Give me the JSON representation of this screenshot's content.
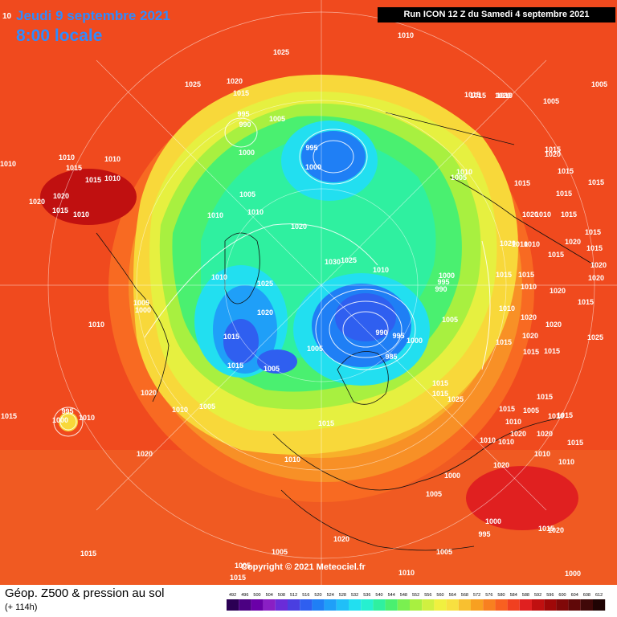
{
  "header": {
    "date": "Jeudi 9 septembre 2021",
    "local_time": "8:00 locale",
    "corner_fragment": "10",
    "run": "Run ICON 12 Z du Samedi 4 septembre 2021"
  },
  "copyright": "Copyright © 2021 Meteociel.fr",
  "footer": {
    "title": "Géop. Z500 & pression au sol",
    "lead_time": "(+ 114h)"
  },
  "scale": {
    "labels": [
      "492",
      "496",
      "500",
      "504",
      "508",
      "512",
      "516",
      "520",
      "524",
      "528",
      "532",
      "536",
      "540",
      "544",
      "548",
      "552",
      "556",
      "560",
      "564",
      "568",
      "572",
      "576",
      "580",
      "584",
      "588",
      "592",
      "596",
      "600",
      "604",
      "608",
      "612"
    ],
    "colors": [
      "#2b0054",
      "#4b0082",
      "#6a00a8",
      "#8a1fc4",
      "#6a2cd8",
      "#4a3fe0",
      "#2f5ff0",
      "#1f7ff5",
      "#1f9ff8",
      "#20bff8",
      "#22dff0",
      "#26f0d0",
      "#2ff0a0",
      "#4af070",
      "#7af050",
      "#a8f040",
      "#d0f040",
      "#f0f040",
      "#f8e040",
      "#f8c030",
      "#f8a020",
      "#f88020",
      "#f86020",
      "#f04020",
      "#e02020",
      "#c01010",
      "#a00808",
      "#800808",
      "#600808",
      "#400808",
      "#200404"
    ]
  },
  "isobars": [
    {
      "v": "1025",
      "c": "w"
    },
    {
      "v": "1010",
      "c": "w"
    },
    {
      "v": "1025",
      "c": "w"
    },
    {
      "v": "1020",
      "c": "w"
    },
    {
      "v": "1015",
      "c": "w"
    },
    {
      "v": "995",
      "c": "w"
    },
    {
      "v": "990",
      "c": "w"
    },
    {
      "v": "1005",
      "c": "w"
    },
    {
      "v": "995",
      "c": "w"
    },
    {
      "v": "1000",
      "c": "w"
    },
    {
      "v": "1000",
      "c": "w"
    },
    {
      "v": "1005",
      "c": "w"
    },
    {
      "v": "1010",
      "c": "w"
    },
    {
      "v": "1010",
      "c": "w"
    },
    {
      "v": "1020",
      "c": "w"
    },
    {
      "v": "1030",
      "c": "w"
    },
    {
      "v": "1025",
      "c": "w"
    },
    {
      "v": "1025",
      "c": "w"
    },
    {
      "v": "1010",
      "c": "w"
    },
    {
      "v": "1020",
      "c": "w"
    },
    {
      "v": "1005",
      "c": "w"
    },
    {
      "v": "1000",
      "c": "w"
    },
    {
      "v": "1010",
      "c": "w"
    },
    {
      "v": "1015",
      "c": "w"
    },
    {
      "v": "1015",
      "c": "w"
    },
    {
      "v": "1005",
      "c": "w"
    },
    {
      "v": "1005",
      "c": "w"
    },
    {
      "v": "990",
      "c": "w"
    },
    {
      "v": "995",
      "c": "w"
    },
    {
      "v": "1000",
      "c": "w"
    },
    {
      "v": "985",
      "c": "w"
    },
    {
      "v": "1000",
      "c": "w"
    },
    {
      "v": "995",
      "c": "w"
    },
    {
      "v": "990",
      "c": "w"
    },
    {
      "v": "1005",
      "c": "w"
    },
    {
      "v": "1020",
      "c": "w"
    },
    {
      "v": "1010",
      "c": "w"
    },
    {
      "v": "1005",
      "c": "w"
    },
    {
      "v": "995",
      "c": "w"
    },
    {
      "v": "1000",
      "c": "w"
    },
    {
      "v": "1010",
      "c": "w"
    },
    {
      "v": "1015",
      "c": "w"
    },
    {
      "v": "1020",
      "c": "w"
    },
    {
      "v": "1010",
      "c": "w"
    },
    {
      "v": "1015",
      "c": "w"
    },
    {
      "v": "1025",
      "c": "w"
    },
    {
      "v": "1015",
      "c": "w"
    },
    {
      "v": "1015",
      "c": "w"
    },
    {
      "v": "1010",
      "c": "w"
    },
    {
      "v": "1015",
      "c": "w"
    },
    {
      "v": "1015",
      "c": "w"
    },
    {
      "v": "1020",
      "c": "w"
    },
    {
      "v": "1010",
      "c": "w"
    },
    {
      "v": "1005",
      "c": "w"
    },
    {
      "v": "1005",
      "c": "w"
    },
    {
      "v": "1010",
      "c": "w"
    },
    {
      "v": "1010",
      "c": "w"
    },
    {
      "v": "1010",
      "c": "w"
    },
    {
      "v": "1015",
      "c": "w"
    },
    {
      "v": "1015",
      "c": "w"
    },
    {
      "v": "1010",
      "c": "w"
    },
    {
      "v": "1020",
      "c": "w"
    },
    {
      "v": "1020",
      "c": "w"
    },
    {
      "v": "1015",
      "c": "w"
    },
    {
      "v": "1010",
      "c": "w"
    },
    {
      "v": "1005",
      "c": "w"
    },
    {
      "v": "1010",
      "c": "w"
    },
    {
      "v": "1015",
      "c": "w"
    },
    {
      "v": "1015",
      "c": "w"
    },
    {
      "v": "1015",
      "c": "w"
    },
    {
      "v": "1015",
      "c": "w"
    },
    {
      "v": "1015",
      "c": "w"
    },
    {
      "v": "1020",
      "c": "w"
    },
    {
      "v": "1020",
      "c": "w"
    },
    {
      "v": "1010",
      "c": "w"
    },
    {
      "v": "1015",
      "c": "w"
    },
    {
      "v": "1020",
      "c": "w"
    },
    {
      "v": "1010",
      "c": "w"
    },
    {
      "v": "1010",
      "c": "w"
    },
    {
      "v": "1015",
      "c": "w"
    },
    {
      "v": "1020",
      "c": "w"
    },
    {
      "v": "1015",
      "c": "w"
    },
    {
      "v": "1015",
      "c": "w"
    },
    {
      "v": "1020",
      "c": "w"
    },
    {
      "v": "1020",
      "c": "w"
    },
    {
      "v": "1015",
      "c": "w"
    },
    {
      "v": "1020",
      "c": "w"
    },
    {
      "v": "1015",
      "c": "w"
    },
    {
      "v": "1010",
      "c": "w"
    },
    {
      "v": "1015",
      "c": "w"
    },
    {
      "v": "1020",
      "c": "w"
    },
    {
      "v": "1010",
      "c": "w"
    },
    {
      "v": "1020",
      "c": "w"
    },
    {
      "v": "1015",
      "c": "w"
    },
    {
      "v": "1020",
      "c": "w"
    },
    {
      "v": "1025",
      "c": "w"
    },
    {
      "v": "1015",
      "c": "w"
    },
    {
      "v": "1015",
      "c": "w"
    },
    {
      "v": "1015",
      "c": "w"
    },
    {
      "v": "1005",
      "c": "w"
    },
    {
      "v": "1010",
      "c": "w"
    },
    {
      "v": "1015",
      "c": "w"
    },
    {
      "v": "1015",
      "c": "w"
    },
    {
      "v": "1010",
      "c": "w"
    },
    {
      "v": "1020",
      "c": "w"
    },
    {
      "v": "1010",
      "c": "w"
    },
    {
      "v": "1010",
      "c": "w"
    },
    {
      "v": "1020",
      "c": "w"
    },
    {
      "v": "1015",
      "c": "w"
    },
    {
      "v": "1010",
      "c": "w"
    },
    {
      "v": "1010",
      "c": "w"
    },
    {
      "v": "1005",
      "c": "w"
    },
    {
      "v": "1005",
      "c": "w"
    },
    {
      "v": "1000",
      "c": "w"
    },
    {
      "v": "995",
      "c": "w"
    },
    {
      "v": "1000",
      "c": "w"
    },
    {
      "v": "1015",
      "c": "w"
    },
    {
      "v": "1020",
      "c": "w"
    },
    {
      "v": "1020",
      "c": "w"
    },
    {
      "v": "1020",
      "c": "w"
    },
    {
      "v": "1005",
      "c": "w"
    },
    {
      "v": "1015",
      "c": "w"
    },
    {
      "v": "1015",
      "c": "w"
    },
    {
      "v": "1010",
      "c": "w"
    },
    {
      "v": "1005",
      "c": "w"
    },
    {
      "v": "1000",
      "c": "w"
    },
    {
      "v": "995",
      "c": "w"
    },
    {
      "v": "1015",
      "c": "w"
    },
    {
      "v": "1025",
      "c": "w"
    },
    {
      "v": "1015",
      "c": "w"
    },
    {
      "v": "1015",
      "c": "w"
    }
  ]
}
